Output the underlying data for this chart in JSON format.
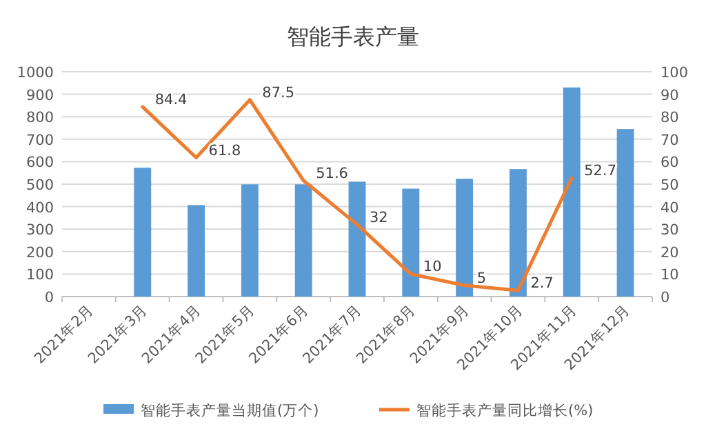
{
  "chart_data": {
    "type": "bar",
    "title": "智能手表产量",
    "categories": [
      "2021年2月",
      "2021年3月",
      "2021年4月",
      "2021年5月",
      "2021年6月",
      "2021年7月",
      "2021年8月",
      "2021年9月",
      "2021年10月",
      "2021年11月",
      "2021年12月"
    ],
    "series": [
      {
        "name": "智能手表产量当期值(万个)",
        "color": "#5b9bd5",
        "values": [
          null,
          573,
          407,
          499,
          499,
          511,
          480,
          524,
          567,
          930,
          745
        ]
      },
      {
        "name": "智能手表产量同比增长(%)",
        "color": "#ed7d31",
        "type": "line",
        "axis": "y2",
        "values": [
          null,
          84.4,
          61.8,
          87.5,
          51.6,
          32,
          10,
          5,
          2.7,
          52.7,
          null
        ],
        "value_labels": [
          null,
          "84.4",
          "61.8",
          "87.5",
          "51.6",
          "32",
          "10",
          "5",
          "2.7",
          "52.7",
          null
        ]
      }
    ],
    "ylim": [
      0,
      1000
    ],
    "yticks": [
      0,
      100,
      200,
      300,
      400,
      500,
      600,
      700,
      800,
      900,
      1000
    ],
    "y2lim": [
      0,
      100
    ],
    "y2ticks": [
      0,
      10,
      20,
      30,
      40,
      50,
      60,
      70,
      80,
      90,
      100
    ],
    "grid": "y",
    "legend": "bottom"
  }
}
